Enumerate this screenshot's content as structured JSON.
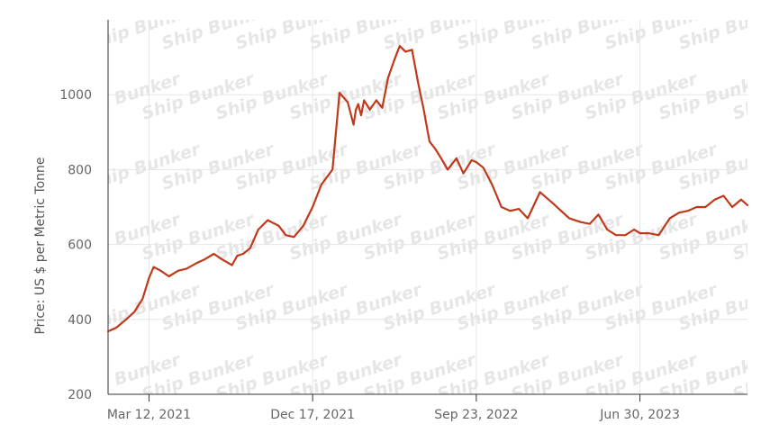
{
  "chart_data": {
    "type": "line",
    "ylabel": "Price: US $ per Metric Tonne",
    "xlabel": "",
    "ylim": [
      200,
      1200
    ],
    "yticks": [
      200,
      400,
      600,
      800,
      1000
    ],
    "x_range": [
      "2021-01-01",
      "2023-12-31"
    ],
    "xticks": [
      "2021-03-12",
      "2021-12-17",
      "2022-09-23",
      "2023-06-30"
    ],
    "xtick_labels": [
      "Mar 12, 2021",
      "Dec 17, 2021",
      "Sep 23, 2022",
      "Jun 30, 2023"
    ],
    "grid": true,
    "legend": "none",
    "watermark": "Ship Bunker",
    "line_color": "#c0391b",
    "series": [
      {
        "x": [
          "2021-01-01",
          "2021-01-15",
          "2021-02-01",
          "2021-02-15",
          "2021-03-01",
          "2021-03-12",
          "2021-03-20",
          "2021-04-01",
          "2021-04-15",
          "2021-05-01",
          "2021-05-15",
          "2021-06-01",
          "2021-06-15",
          "2021-07-01",
          "2021-07-15",
          "2021-08-01",
          "2021-08-10",
          "2021-08-20",
          "2021-09-01",
          "2021-09-15",
          "2021-10-01",
          "2021-10-20",
          "2021-11-01",
          "2021-11-15",
          "2021-12-01",
          "2021-12-17",
          "2022-01-01",
          "2022-01-20",
          "2022-02-01",
          "2022-02-15",
          "2022-02-25",
          "2022-03-01",
          "2022-03-05",
          "2022-03-10",
          "2022-03-15",
          "2022-03-25",
          "2022-04-05",
          "2022-04-15",
          "2022-04-25",
          "2022-05-05",
          "2022-05-15",
          "2022-05-25",
          "2022-06-05",
          "2022-06-15",
          "2022-06-25",
          "2022-07-05",
          "2022-07-15",
          "2022-07-25",
          "2022-08-05",
          "2022-08-20",
          "2022-09-01",
          "2022-09-15",
          "2022-09-23",
          "2022-10-05",
          "2022-10-20",
          "2022-11-05",
          "2022-11-20",
          "2022-12-05",
          "2022-12-20",
          "2023-01-10",
          "2023-02-01",
          "2023-02-15",
          "2023-03-01",
          "2023-03-20",
          "2023-04-05",
          "2023-04-20",
          "2023-05-05",
          "2023-05-20",
          "2023-06-05",
          "2023-06-20",
          "2023-06-30",
          "2023-07-15",
          "2023-08-01",
          "2023-08-20",
          "2023-09-05",
          "2023-09-20",
          "2023-10-05",
          "2023-10-20",
          "2023-11-05",
          "2023-11-20",
          "2023-12-05",
          "2023-12-20",
          "2023-12-31"
        ],
        "values": [
          368,
          378,
          400,
          420,
          455,
          510,
          540,
          530,
          515,
          530,
          535,
          550,
          560,
          575,
          560,
          545,
          570,
          575,
          590,
          640,
          665,
          650,
          625,
          620,
          650,
          700,
          760,
          800,
          1005,
          980,
          920,
          960,
          975,
          945,
          985,
          960,
          985,
          965,
          1045,
          1090,
          1130,
          1115,
          1120,
          1035,
          960,
          875,
          855,
          830,
          800,
          830,
          790,
          825,
          820,
          805,
          760,
          700,
          690,
          695,
          670,
          740,
          710,
          690,
          670,
          660,
          655,
          680,
          640,
          625,
          625,
          640,
          630,
          630,
          625,
          670,
          685,
          690,
          700,
          700,
          720,
          730,
          700,
          720,
          705
        ]
      }
    ]
  }
}
